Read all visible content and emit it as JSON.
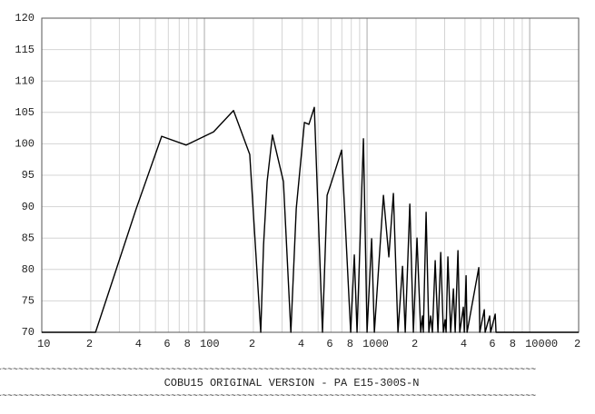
{
  "chart_data": {
    "type": "line",
    "x": [
      10,
      21.4,
      38.1,
      54.6,
      77.3,
      113.8,
      151,
      190,
      222,
      231,
      243,
      262,
      306,
      340,
      367,
      412,
      439,
      474,
      532,
      568,
      606,
      698,
      793,
      835,
      868,
      950,
      1000,
      1067,
      1109,
      1261,
      1361,
      1452,
      1549,
      1652,
      1717,
      1832,
      1927,
      2028,
      2138,
      2193,
      2218,
      2307,
      2399,
      2460,
      2523,
      2624,
      2729,
      2838,
      2944,
      3020,
      3062,
      3141,
      3266,
      3396,
      3483,
      3622,
      3715,
      3908,
      3963,
      4064,
      4121,
      4864,
      4932,
      5260,
      5321,
      5675,
      5754,
      6138,
      6209,
      20000
    ],
    "values": [
      70,
      70,
      89.7,
      101.2,
      99.8,
      101.9,
      105.3,
      98.3,
      70,
      83.9,
      94.0,
      101.4,
      94.0,
      70,
      89.7,
      103.4,
      103.1,
      105.8,
      70,
      91.8,
      94.0,
      99.0,
      70,
      82.3,
      70,
      100.8,
      70,
      84.9,
      70,
      91.8,
      82.0,
      92.1,
      70,
      80.5,
      70,
      90.4,
      70,
      85.0,
      70,
      72.6,
      70,
      89.1,
      70,
      72.6,
      70,
      81.4,
      70,
      82.7,
      70,
      72.0,
      70,
      82.0,
      70,
      76.9,
      70,
      83.0,
      70,
      74.0,
      70,
      79.0,
      70,
      80.3,
      70,
      73.6,
      70,
      72.6,
      70,
      72.9,
      70,
      70
    ],
    "color": "#000000",
    "xscale": "log",
    "xlim": [
      10,
      20000
    ],
    "ylim": [
      70,
      120
    ],
    "xticks": [
      10,
      {
        "value": 20,
        "label": "2"
      },
      {
        "value": 40,
        "label": "4"
      },
      {
        "value": 60,
        "label": "6"
      },
      {
        "value": 80,
        "label": "8"
      },
      100,
      {
        "value": 200,
        "label": "2"
      },
      {
        "value": 400,
        "label": "4"
      },
      {
        "value": 600,
        "label": "6"
      },
      {
        "value": 800,
        "label": "8"
      },
      1000,
      {
        "value": 2000,
        "label": "2"
      },
      {
        "value": 4000,
        "label": "4"
      },
      {
        "value": 6000,
        "label": "6"
      },
      {
        "value": 8000,
        "label": "8"
      },
      10000,
      {
        "value": 20000,
        "label": "2"
      }
    ],
    "x_minor_grid": [
      30,
      50,
      70,
      90,
      300,
      500,
      700,
      900,
      3000,
      5000,
      7000,
      9000
    ],
    "yticks": [
      70,
      75,
      80,
      85,
      90,
      95,
      100,
      105,
      110,
      115,
      120
    ],
    "grid": true,
    "separator": "~~~~~~~~~~~~~~~~~~~~~~~~~~~~~~~~~~~~~~~~~~~~~~~~~~~~~~~~~~~~~~~~~~~~~~~~~~~~~~~~~~~~~~~~~~~~~~~~~~~",
    "caption": "COBU15 ORIGINAL VERSION - PA E15-300S-N"
  }
}
